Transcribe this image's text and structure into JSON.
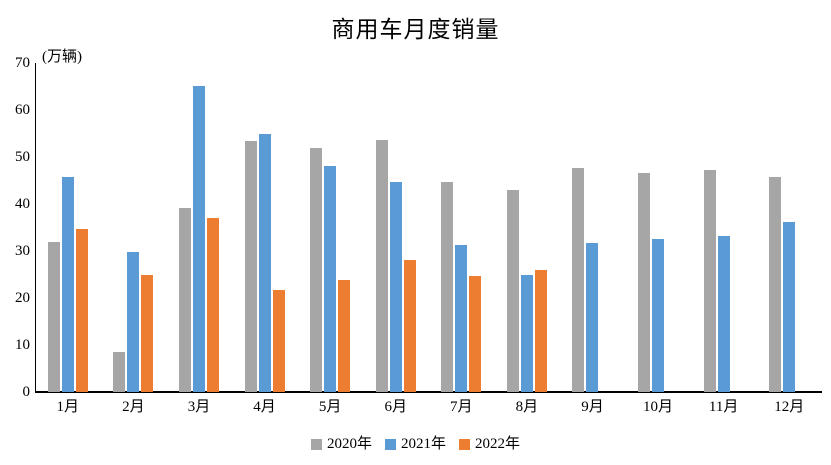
{
  "chart_data": {
    "type": "bar",
    "title": "商用车月度销量",
    "unit_label": "(万辆)",
    "xlabel": "",
    "ylabel": "万辆",
    "ylim": [
      0,
      70
    ],
    "yticks": [
      0,
      10,
      20,
      30,
      40,
      50,
      60,
      70
    ],
    "grid": false,
    "legend_position": "bottom",
    "categories": [
      "1月",
      "2月",
      "3月",
      "4月",
      "5月",
      "6月",
      "7月",
      "8月",
      "9月",
      "10月",
      "11月",
      "12月"
    ],
    "series": [
      {
        "name": "2020年",
        "color": "#A6A6A6",
        "values": [
          32.0,
          8.6,
          39.1,
          53.4,
          52.0,
          53.6,
          44.7,
          43.0,
          47.7,
          46.5,
          47.3,
          45.7
        ]
      },
      {
        "name": "2021年",
        "color": "#5B9BD5",
        "values": [
          45.8,
          29.7,
          65.2,
          55.0,
          48.1,
          44.6,
          31.2,
          24.9,
          31.6,
          32.6,
          33.1,
          36.2
        ]
      },
      {
        "name": "2022年",
        "color": "#ED7D31",
        "values": [
          34.6,
          25.0,
          37.0,
          21.7,
          23.9,
          28.1,
          24.6,
          25.9,
          null,
          null,
          null,
          null
        ]
      }
    ],
    "axis_color": "#000000",
    "text_color": "#000000"
  }
}
